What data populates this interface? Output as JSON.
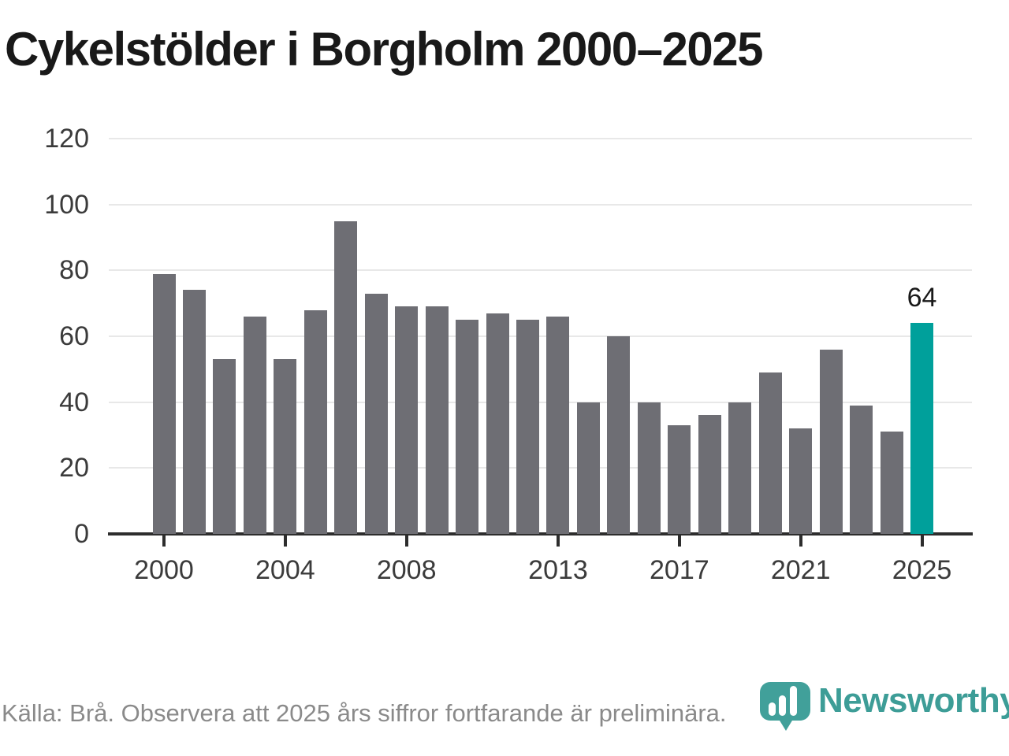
{
  "title": "Cykelstölder i Borgholm 2000–2025",
  "chart_data": {
    "type": "bar",
    "title": "Cykelstölder i Borgholm 2000–2025",
    "x": [
      2000,
      2001,
      2002,
      2003,
      2004,
      2005,
      2006,
      2007,
      2008,
      2009,
      2010,
      2011,
      2012,
      2013,
      2014,
      2015,
      2016,
      2017,
      2018,
      2019,
      2020,
      2021,
      2022,
      2023,
      2024,
      2025
    ],
    "values": [
      79,
      74,
      53,
      66,
      53,
      68,
      95,
      73,
      69,
      69,
      65,
      67,
      65,
      66,
      40,
      60,
      40,
      33,
      36,
      40,
      49,
      32,
      56,
      39,
      31,
      64
    ],
    "highlight_index": 25,
    "highlight_label": "64",
    "bar_color": "#6e6e74",
    "highlight_color": "#00a09b",
    "ylim": [
      0,
      120
    ],
    "yticks": [
      0,
      20,
      40,
      60,
      80,
      100,
      120
    ],
    "xtick_years": [
      2000,
      2004,
      2008,
      2013,
      2017,
      2021,
      2025
    ],
    "grid": "on",
    "legend": "none"
  },
  "footer": {
    "source": "Källa: Brå. Observera att 2025 års siffror fortfarande är preliminära."
  },
  "brand": {
    "name": "Newsworthy",
    "icon": "newsworthy-logo-icon",
    "color": "#3d9d97"
  }
}
